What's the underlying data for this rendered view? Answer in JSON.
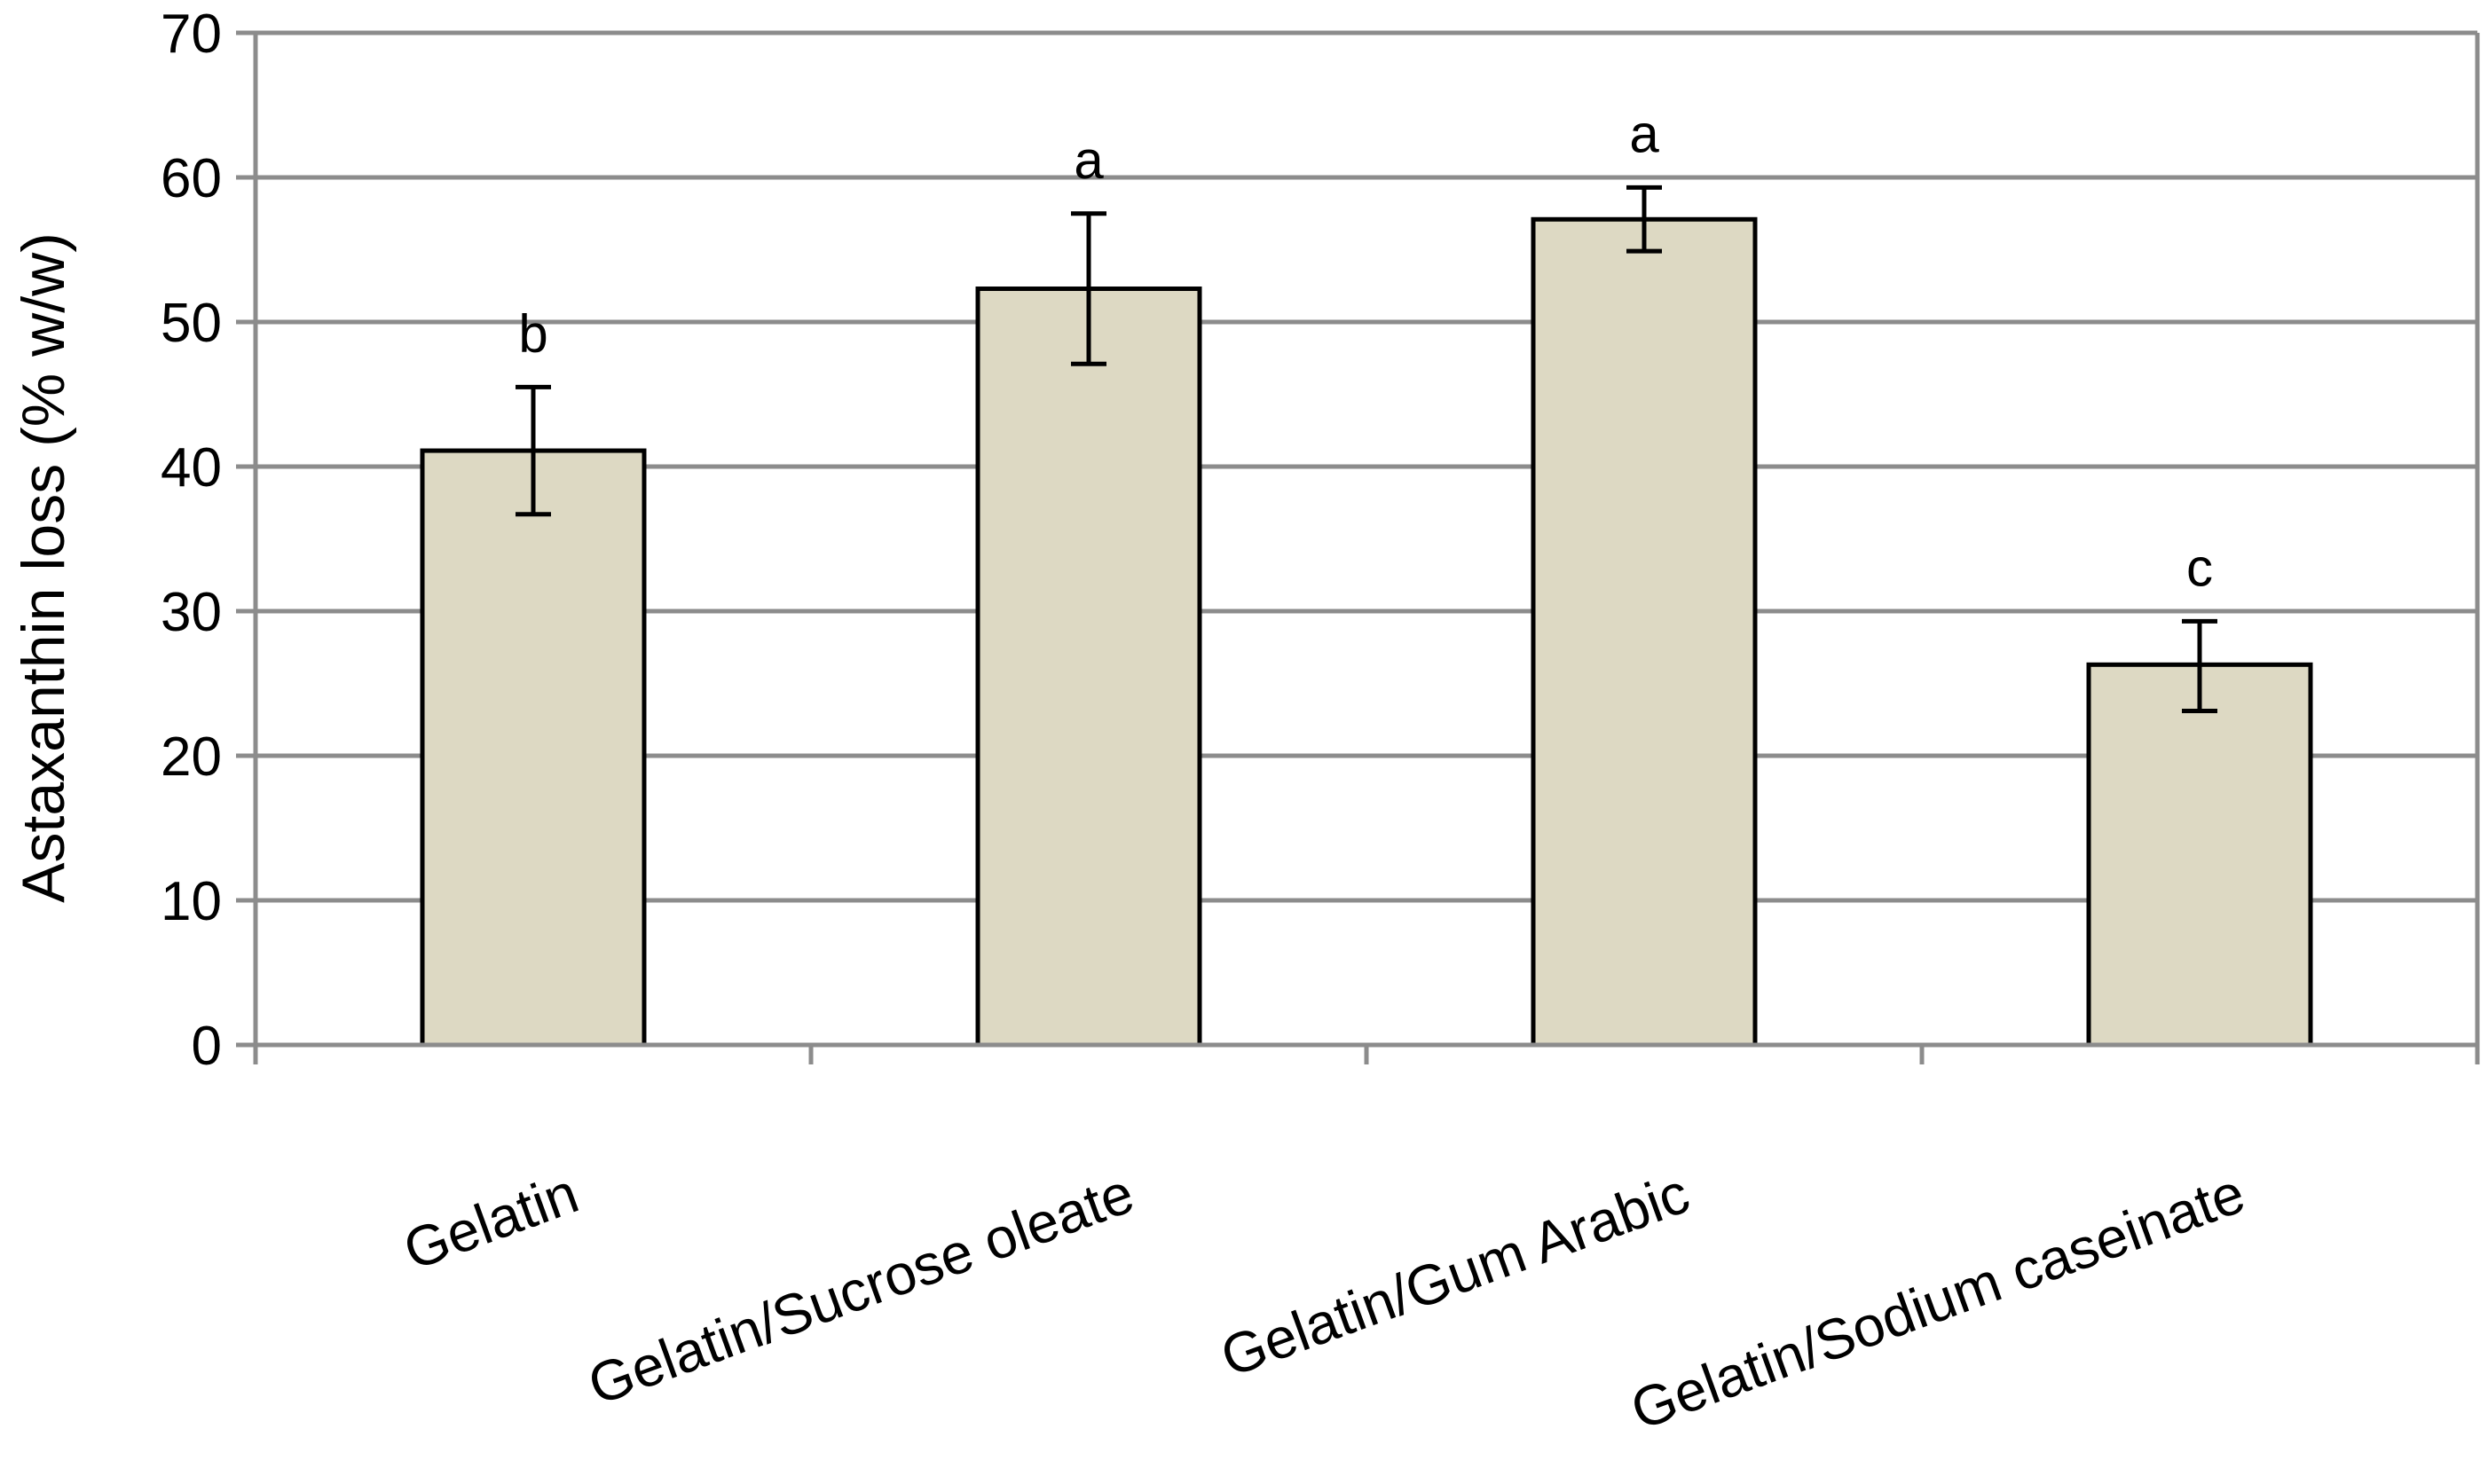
{
  "chart_data": {
    "type": "bar",
    "title": "",
    "xlabel": "",
    "ylabel": "Astaxanthin loss (% w/w)",
    "ylim": [
      0,
      70
    ],
    "yticks": [
      0,
      10,
      20,
      30,
      40,
      50,
      60,
      70
    ],
    "grid": true,
    "categories": [
      "Gelatin",
      "Gelatin/Sucrose oleate",
      "Gelatin/Gum Arabic",
      "Gelatin/Sodium caseinate"
    ],
    "values": [
      41.1,
      52.3,
      57.1,
      26.3
    ],
    "error_low": [
      36.7,
      47.1,
      54.9,
      23.1
    ],
    "error_high": [
      45.5,
      57.5,
      59.3,
      29.3
    ],
    "significance_letters": [
      "b",
      "a",
      "a",
      "c"
    ],
    "colors": {
      "bar_fill": "#ddd9c3",
      "bar_stroke": "#000000",
      "grid": "#8c8c8c",
      "axis": "#8c8c8c",
      "error_bar": "#000000",
      "text": "#000000"
    }
  }
}
